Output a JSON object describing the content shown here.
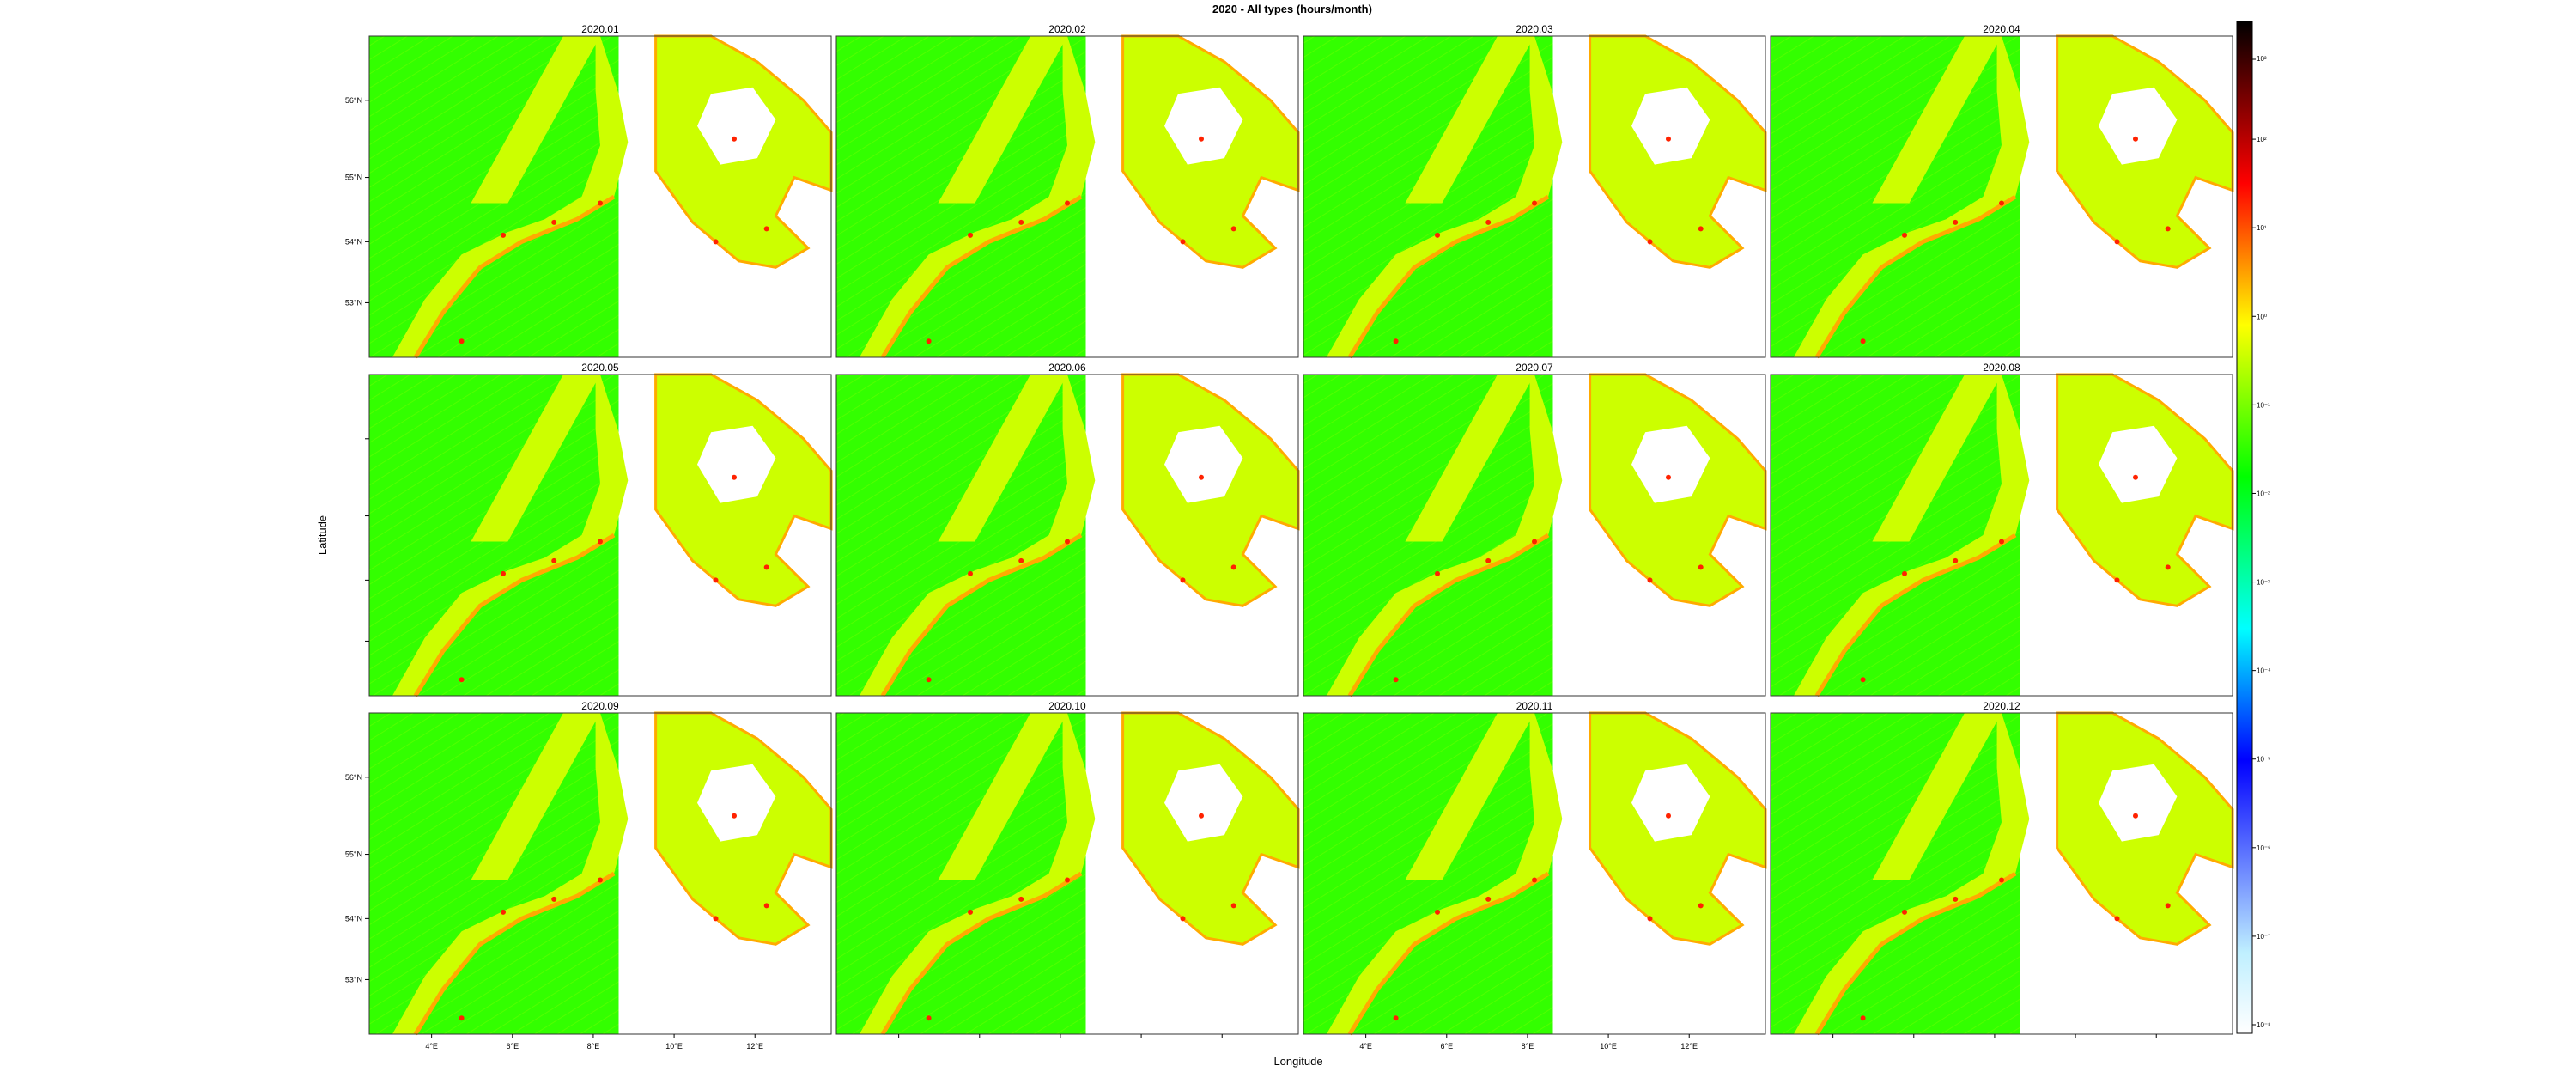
{
  "title": "2020 - All types (hours/month)",
  "xlabel": "Longitude",
  "ylabel": "Latitude",
  "panels": [
    "2020.01",
    "2020.02",
    "2020.03",
    "2020.04",
    "2020.05",
    "2020.06",
    "2020.07",
    "2020.08",
    "2020.09",
    "2020.10",
    "2020.11",
    "2020.12"
  ],
  "lat_ticks": [
    "53°N",
    "54°N",
    "55°N",
    "56°N"
  ],
  "lon_ticks": [
    "4°E",
    "6°E",
    "8°E",
    "10°E",
    "12°E"
  ],
  "colorbar": {
    "scale": "log",
    "tick_labels": [
      "10⁻⁸",
      "10⁻⁷",
      "10⁻⁶",
      "10⁻⁵",
      "10⁻⁴",
      "10⁻³",
      "10⁻²",
      "10⁻¹",
      "10⁰",
      "10¹",
      "10²"
    ],
    "top_label": "10³",
    "colors": [
      "#ffffff",
      "#bfefff",
      "#0000ff",
      "#00ffff",
      "#00ff00",
      "#ffff00",
      "#ff0000",
      "#000000"
    ]
  },
  "colors": {
    "background_sea": "#ffffff",
    "low_density": "#33ff00",
    "mid_density": "#ccff00",
    "high_density": "#ffaa00",
    "peak_density": "#ff2200"
  }
}
